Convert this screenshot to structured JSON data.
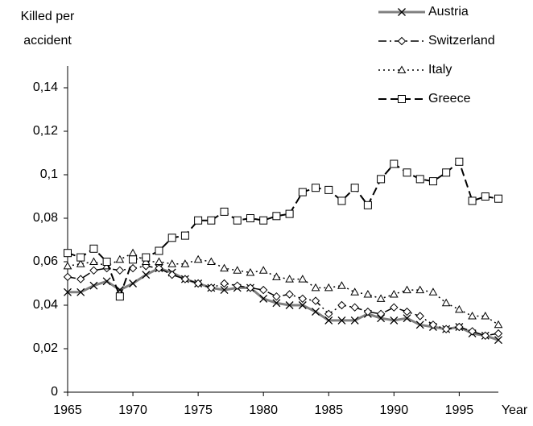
{
  "chart_data": {
    "type": "line",
    "y_label": "Killed per accident",
    "x_label": "Year",
    "x": [
      1965,
      1966,
      1967,
      1968,
      1969,
      1970,
      1971,
      1972,
      1973,
      1974,
      1975,
      1976,
      1977,
      1978,
      1979,
      1980,
      1981,
      1982,
      1983,
      1984,
      1985,
      1986,
      1987,
      1988,
      1989,
      1990,
      1991,
      1992,
      1993,
      1994,
      1995,
      1996,
      1997,
      1998
    ],
    "xlim": [
      1965,
      1998
    ],
    "xticks": [
      1965,
      1970,
      1975,
      1980,
      1985,
      1990,
      1995
    ],
    "ylim": [
      0,
      0.15
    ],
    "yticks": [
      0,
      {
        "value": 0.02,
        "label": "0,02"
      },
      {
        "value": 0.04,
        "label": "0,04"
      },
      {
        "value": 0.06,
        "label": "0,06"
      },
      {
        "value": 0.08,
        "label": "0,08"
      },
      {
        "value": 0.1,
        "label": "0,1"
      },
      {
        "value": 0.12,
        "label": "0,12"
      },
      {
        "value": 0.14,
        "label": "0,14"
      }
    ],
    "grid": false,
    "legend": "top-right",
    "series": [
      {
        "name": "Austria",
        "color": "#808080",
        "marker": "x",
        "dash": "none",
        "width": 3,
        "values": [
          0.046,
          0.046,
          0.049,
          0.051,
          0.047,
          0.05,
          0.054,
          0.057,
          0.055,
          0.052,
          0.05,
          0.048,
          0.047,
          0.048,
          0.048,
          0.043,
          0.041,
          0.04,
          0.04,
          0.037,
          0.033,
          0.033,
          0.033,
          0.036,
          0.034,
          0.033,
          0.034,
          0.031,
          0.03,
          0.029,
          0.03,
          0.027,
          0.026,
          0.024
        ]
      },
      {
        "name": "Switzerland",
        "color": "#000000",
        "marker": "diamond",
        "dash": "10 4 2 4",
        "width": 1.5,
        "values": [
          0.053,
          0.052,
          0.056,
          0.057,
          0.056,
          0.057,
          0.058,
          0.057,
          0.054,
          0.052,
          0.05,
          0.048,
          0.05,
          0.049,
          0.048,
          0.047,
          0.044,
          0.045,
          0.043,
          0.042,
          0.036,
          0.04,
          0.039,
          0.037,
          0.036,
          0.039,
          0.037,
          0.035,
          0.031,
          0.029,
          0.03,
          0.028,
          0.026,
          0.027
        ]
      },
      {
        "name": "Italy",
        "color": "#000000",
        "marker": "triangle",
        "dash": "2 4",
        "width": 1.5,
        "values": [
          0.058,
          0.059,
          0.06,
          0.058,
          0.061,
          0.064,
          0.06,
          0.06,
          0.059,
          0.059,
          0.061,
          0.06,
          0.057,
          0.056,
          0.055,
          0.056,
          0.053,
          0.052,
          0.052,
          0.048,
          0.048,
          0.049,
          0.046,
          0.045,
          0.043,
          0.045,
          0.047,
          0.047,
          0.046,
          0.041,
          0.038,
          0.035,
          0.035,
          0.031
        ]
      },
      {
        "name": "Greece",
        "color": "#000000",
        "marker": "square",
        "dash": "10 5",
        "width": 2,
        "values": [
          0.064,
          0.062,
          0.066,
          0.06,
          0.044,
          0.061,
          0.062,
          0.065,
          0.071,
          0.072,
          0.079,
          0.079,
          0.083,
          0.079,
          0.08,
          0.079,
          0.081,
          0.082,
          0.092,
          0.094,
          0.093,
          0.088,
          0.094,
          0.086,
          0.098,
          0.105,
          0.101,
          0.098,
          0.097,
          0.101,
          0.106,
          0.088,
          0.09,
          0.089
        ]
      }
    ]
  }
}
